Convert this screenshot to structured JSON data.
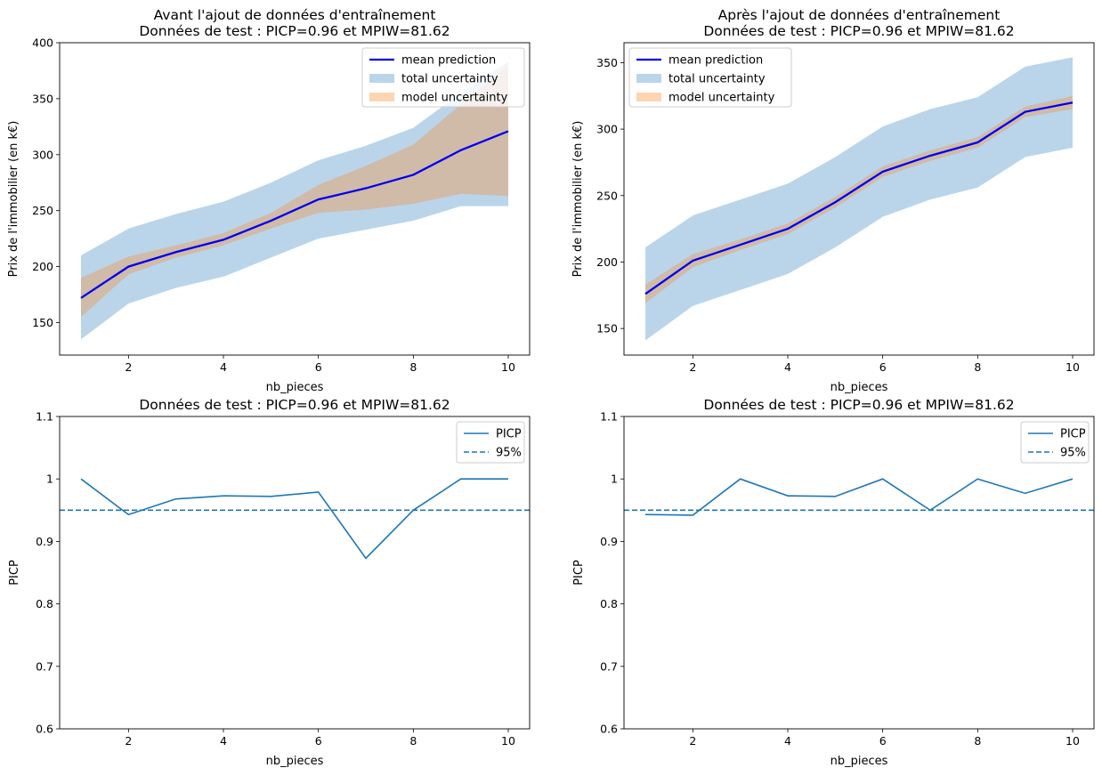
{
  "chart_data": [
    {
      "type": "line",
      "title": "Avant l'ajout de données d'entraînement\nDonnées de test : PICP=0.96 et MPIW=81.62",
      "xlabel": "nb_pieces",
      "ylabel": "Prix de l'immobilier (en k€)",
      "xlim": [
        0.55,
        10.45
      ],
      "ylim": [
        121,
        400
      ],
      "xticks": [
        2,
        4,
        6,
        8,
        10
      ],
      "yticks": [
        150,
        200,
        250,
        300,
        350,
        400
      ],
      "legend_position": "upper right",
      "x": [
        1,
        2,
        3,
        4,
        5,
        6,
        7,
        8,
        9,
        10
      ],
      "series": [
        {
          "name": "mean prediction",
          "kind": "line",
          "color": "#0000ee",
          "values": [
            172,
            200,
            213,
            224,
            241,
            260,
            270,
            282,
            304,
            321
          ]
        },
        {
          "name": "total uncertainty",
          "kind": "band",
          "color": "#bad5ea",
          "lower": [
            135,
            167,
            181,
            191,
            208,
            225,
            233,
            241,
            254,
            254
          ],
          "upper": [
            210,
            234,
            247,
            258,
            275,
            295,
            308,
            324,
            355,
            383
          ]
        },
        {
          "name": "model uncertainty",
          "kind": "band",
          "color": "#d0bba8",
          "lower": [
            155,
            193,
            208,
            219,
            234,
            248,
            251,
            256,
            265,
            263
          ],
          "upper": [
            190,
            209,
            219,
            230,
            248,
            273,
            290,
            309,
            345,
            380
          ]
        }
      ]
    },
    {
      "type": "line",
      "title": "Après l'ajout de données d'entraînement\nDonnées de test : PICP=0.96 et MPIW=81.62",
      "xlabel": "nb_pieces",
      "ylabel": "Prix de l'immobilier (en k€)",
      "xlim": [
        0.55,
        10.45
      ],
      "ylim": [
        130,
        365
      ],
      "xticks": [
        2,
        4,
        6,
        8,
        10
      ],
      "yticks": [
        150,
        200,
        250,
        300,
        350
      ],
      "legend_position": "upper left",
      "x": [
        1,
        2,
        3,
        4,
        5,
        6,
        7,
        8,
        9,
        10
      ],
      "series": [
        {
          "name": "mean prediction",
          "kind": "line",
          "color": "#0000ee",
          "values": [
            176,
            201,
            213,
            225,
            245,
            268,
            280,
            290,
            313,
            320
          ]
        },
        {
          "name": "total uncertainty",
          "kind": "band",
          "color": "#bad5ea",
          "lower": [
            141,
            167,
            179,
            191,
            211,
            234,
            247,
            256,
            279,
            286
          ],
          "upper": [
            211,
            235,
            247,
            259,
            279,
            302,
            315,
            324,
            347,
            354
          ]
        },
        {
          "name": "model uncertainty",
          "kind": "band",
          "color": "#d0bba8",
          "lower": [
            169,
            196,
            209,
            221,
            241,
            264,
            276,
            286,
            309,
            315
          ],
          "upper": [
            183,
            206,
            217,
            229,
            249,
            272,
            284,
            294,
            317,
            325
          ]
        }
      ]
    },
    {
      "type": "line",
      "title": "Données de test : PICP=0.96 et MPIW=81.62",
      "xlabel": "nb_pieces",
      "ylabel": "PICP",
      "xlim": [
        0.55,
        10.45
      ],
      "ylim": [
        0.6,
        1.1
      ],
      "xticks": [
        2,
        4,
        6,
        8,
        10
      ],
      "yticks": [
        0.6,
        0.7,
        0.8,
        0.9,
        1.0,
        1.1
      ],
      "legend_position": "upper right",
      "x": [
        1,
        2,
        3,
        4,
        5,
        6,
        7,
        8,
        9,
        10
      ],
      "series": [
        {
          "name": "PICP",
          "kind": "line",
          "color": "#1f77b4",
          "values": [
            1.0,
            0.943,
            0.968,
            0.973,
            0.972,
            0.979,
            0.873,
            0.95,
            1.0,
            1.0
          ]
        },
        {
          "name": "95%",
          "kind": "hline",
          "color": "#1f77b4",
          "value": 0.95
        }
      ]
    },
    {
      "type": "line",
      "title": "Données de test : PICP=0.96 et MPIW=81.62",
      "xlabel": "nb_pieces",
      "ylabel": "PICP",
      "xlim": [
        0.55,
        10.45
      ],
      "ylim": [
        0.6,
        1.1
      ],
      "xticks": [
        2,
        4,
        6,
        8,
        10
      ],
      "yticks": [
        0.6,
        0.7,
        0.8,
        0.9,
        1.0,
        1.1
      ],
      "legend_position": "upper right",
      "x": [
        1,
        2,
        3,
        4,
        5,
        6,
        7,
        8,
        9,
        10
      ],
      "series": [
        {
          "name": "PICP",
          "kind": "line",
          "color": "#1f77b4",
          "values": [
            0.943,
            0.942,
            1.0,
            0.973,
            0.972,
            1.0,
            0.95,
            1.0,
            0.977,
            1.0
          ]
        },
        {
          "name": "95%",
          "kind": "hline",
          "color": "#1f77b4",
          "value": 0.95
        }
      ]
    }
  ]
}
